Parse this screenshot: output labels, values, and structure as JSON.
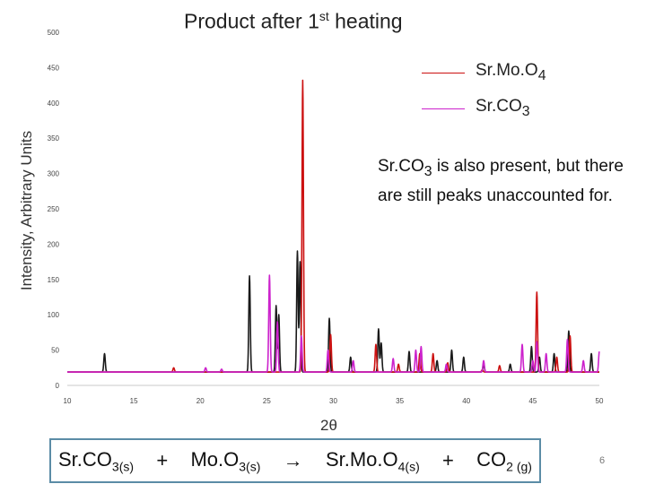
{
  "slide": {
    "title_main": "Product after 1",
    "title_sup": "st",
    "title_end": " heating",
    "note": "Sr.CO3 is also present, but there are still peaks unaccounted for.",
    "note_parts": {
      "a": "Sr.CO",
      "b": "3",
      "c": " is also present, but there are still peaks unaccounted for."
    },
    "equation": {
      "r1": "Sr.CO",
      "r1_sub": "3(s)",
      "plus1": "+",
      "r2": "Mo.O",
      "r2_sub": "3(s)",
      "arrow": "→",
      "p1": "Sr.Mo.O",
      "p1_sub": "4(s)",
      "plus2": "+",
      "p2": "CO",
      "p2_sub": "2 (g)"
    },
    "page_number": "6"
  },
  "chart_data": {
    "type": "line",
    "title": "Product after 1st heating",
    "xlabel": "2θ",
    "ylabel": "Intensity, Arbitrary Units",
    "xlim": [
      10,
      50
    ],
    "ylim": [
      0,
      500
    ],
    "xticks": [
      10,
      15,
      20,
      25,
      30,
      35,
      40,
      45,
      50
    ],
    "yticks": [
      0,
      50,
      100,
      150,
      200,
      250,
      300,
      350,
      400,
      450,
      500
    ],
    "legend_position": "top-right",
    "grid": false,
    "baseline": 19,
    "series": [
      {
        "name": "",
        "color": "#1a1a1a",
        "peaks": [
          [
            12.8,
            45
          ],
          [
            23.7,
            155
          ],
          [
            25.7,
            113
          ],
          [
            25.9,
            100
          ],
          [
            27.3,
            190
          ],
          [
            27.5,
            175
          ],
          [
            29.7,
            95
          ],
          [
            31.3,
            40
          ],
          [
            33.4,
            80
          ],
          [
            33.6,
            60
          ],
          [
            35.7,
            48
          ],
          [
            37.8,
            35
          ],
          [
            38.9,
            50
          ],
          [
            39.8,
            40
          ],
          [
            41.3,
            30
          ],
          [
            43.3,
            30
          ],
          [
            44.9,
            55
          ],
          [
            45.5,
            40
          ],
          [
            46.6,
            45
          ],
          [
            47.7,
            77
          ],
          [
            49.4,
            45
          ]
        ]
      },
      {
        "name": "Sr.Mo.O4",
        "label_main": "Sr.Mo.O",
        "label_sub": "4",
        "color": "#cc1111",
        "peaks": [
          [
            18.0,
            25
          ],
          [
            27.7,
            432
          ],
          [
            29.8,
            72
          ],
          [
            33.2,
            58
          ],
          [
            34.9,
            30
          ],
          [
            36.5,
            45
          ],
          [
            37.5,
            45
          ],
          [
            38.6,
            32
          ],
          [
            41.2,
            22
          ],
          [
            42.5,
            28
          ],
          [
            45.3,
            132
          ],
          [
            46.8,
            40
          ],
          [
            47.8,
            70
          ]
        ]
      },
      {
        "name": "Sr.CO3",
        "label_main": "Sr.CO",
        "label_sub": "3",
        "color": "#cc22cc",
        "peaks": [
          [
            20.4,
            25
          ],
          [
            21.6,
            23
          ],
          [
            25.2,
            156
          ],
          [
            25.8,
            90
          ],
          [
            27.6,
            70
          ],
          [
            29.6,
            50
          ],
          [
            31.5,
            35
          ],
          [
            34.5,
            38
          ],
          [
            36.2,
            50
          ],
          [
            36.6,
            55
          ],
          [
            38.5,
            30
          ],
          [
            41.3,
            35
          ],
          [
            44.2,
            58
          ],
          [
            45.0,
            35
          ],
          [
            45.3,
            62
          ],
          [
            46.0,
            45
          ],
          [
            47.6,
            65
          ],
          [
            48.8,
            35
          ],
          [
            50.0,
            48
          ]
        ]
      }
    ]
  }
}
